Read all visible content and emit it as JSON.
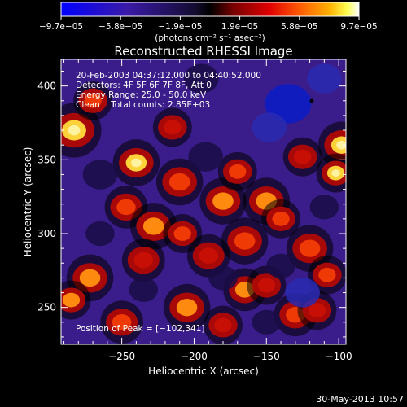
{
  "chart_data": {
    "type": "heatmap",
    "title": "Reconstructed RHESSI Image",
    "xlabel": "Heliocentric X (arcsec)",
    "ylabel": "Heliocentric Y (arcsec)",
    "xlim": [
      -292,
      -95
    ],
    "ylim": [
      225,
      418
    ],
    "x_ticks": [
      -250,
      -200,
      -150,
      -100
    ],
    "x_tick_labels": [
      "−250",
      "−200",
      "−150",
      "−100"
    ],
    "y_ticks": [
      250,
      300,
      350,
      400
    ],
    "y_tick_labels": [
      "250",
      "300",
      "350",
      "400"
    ],
    "colorbar": {
      "range": [
        -9.7e-05,
        9.7e-05
      ],
      "tick_labels": [
        "−9.7e−05",
        "−5.8e−05",
        "−1.9e−05",
        "1.9e−05",
        "5.8e−05",
        "9.7e−05"
      ],
      "units_text": "(photons cm⁻² s⁻¹ asec⁻²)"
    },
    "annotations": [
      "20-Feb-2003 04:37:12.000 to 04:40:52.000",
      "Detectors: 4F 5F 6F 7F 8F, Att 0",
      "Energy Range: 25.0 - 50.0 keV",
      "Clean    Total counts: 2.85E+03"
    ],
    "peak_label": "Position of Peak = [−102,341]",
    "blobs": [
      {
        "x": -283,
        "y": 370,
        "v": 1.0,
        "r": 14
      },
      {
        "x": -270,
        "y": 390,
        "v": 0.6,
        "r": 10
      },
      {
        "x": -240,
        "y": 348,
        "v": 0.9,
        "r": 12
      },
      {
        "x": -215,
        "y": 372,
        "v": 0.55,
        "r": 10
      },
      {
        "x": -210,
        "y": 335,
        "v": 0.6,
        "r": 12
      },
      {
        "x": -247,
        "y": 318,
        "v": 0.7,
        "r": 11
      },
      {
        "x": -228,
        "y": 305,
        "v": 0.85,
        "r": 12
      },
      {
        "x": -208,
        "y": 300,
        "v": 0.7,
        "r": 10
      },
      {
        "x": -235,
        "y": 282,
        "v": 0.55,
        "r": 11
      },
      {
        "x": -180,
        "y": 322,
        "v": 0.75,
        "r": 12
      },
      {
        "x": -170,
        "y": 342,
        "v": 0.6,
        "r": 10
      },
      {
        "x": -150,
        "y": 322,
        "v": 0.8,
        "r": 12
      },
      {
        "x": -140,
        "y": 310,
        "v": 0.6,
        "r": 10
      },
      {
        "x": -165,
        "y": 295,
        "v": 0.6,
        "r": 12
      },
      {
        "x": -190,
        "y": 285,
        "v": 0.55,
        "r": 11
      },
      {
        "x": -120,
        "y": 290,
        "v": 0.7,
        "r": 12
      },
      {
        "x": -108,
        "y": 272,
        "v": 0.6,
        "r": 10
      },
      {
        "x": -272,
        "y": 270,
        "v": 0.85,
        "r": 12
      },
      {
        "x": -285,
        "y": 255,
        "v": 0.75,
        "r": 10
      },
      {
        "x": -250,
        "y": 240,
        "v": 0.6,
        "r": 11
      },
      {
        "x": -205,
        "y": 250,
        "v": 0.8,
        "r": 12
      },
      {
        "x": -180,
        "y": 238,
        "v": 0.55,
        "r": 10
      },
      {
        "x": -165,
        "y": 262,
        "v": 0.75,
        "r": 11
      },
      {
        "x": -150,
        "y": 265,
        "v": 0.55,
        "r": 10
      },
      {
        "x": -130,
        "y": 245,
        "v": 0.7,
        "r": 11
      },
      {
        "x": -115,
        "y": 248,
        "v": 0.55,
        "r": 10
      },
      {
        "x": -98,
        "y": 360,
        "v": 1.0,
        "r": 12
      },
      {
        "x": -102,
        "y": 341,
        "v": 0.95,
        "r": 10
      },
      {
        "x": -125,
        "y": 352,
        "v": 0.55,
        "r": 10
      },
      {
        "x": -135,
        "y": 388,
        "v": -1.0,
        "r": 16
      },
      {
        "x": -148,
        "y": 372,
        "v": -0.6,
        "r": 12
      },
      {
        "x": -110,
        "y": 405,
        "v": -0.5,
        "r": 12
      },
      {
        "x": -195,
        "y": 405,
        "v": -0.45,
        "r": 12
      },
      {
        "x": -265,
        "y": 340,
        "v": -0.45,
        "r": 12
      },
      {
        "x": -125,
        "y": 260,
        "v": -0.55,
        "r": 12
      },
      {
        "x": -150,
        "y": 240,
        "v": -0.45,
        "r": 10
      },
      {
        "x": -140,
        "y": 278,
        "v": -0.4,
        "r": 10
      },
      {
        "x": -192,
        "y": 352,
        "v": -0.35,
        "r": 12
      },
      {
        "x": -235,
        "y": 262,
        "v": -0.4,
        "r": 10
      },
      {
        "x": -265,
        "y": 300,
        "v": -0.35,
        "r": 10
      },
      {
        "x": -110,
        "y": 318,
        "v": -0.35,
        "r": 10
      },
      {
        "x": -180,
        "y": 270,
        "v": -0.3,
        "r": 10
      }
    ]
  },
  "footer": {
    "date": "30-May-2013 10:57"
  }
}
